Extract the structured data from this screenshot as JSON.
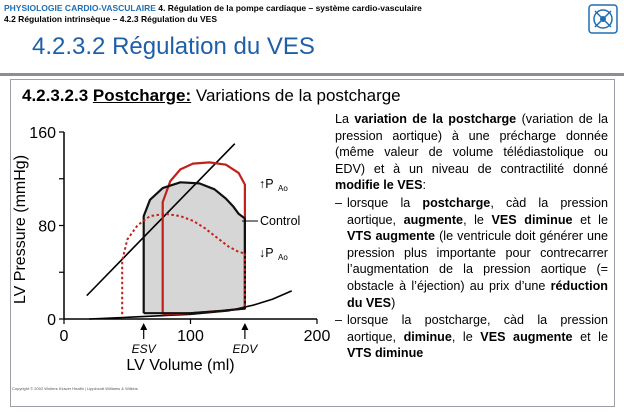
{
  "header": {
    "course_main": "PHYSIOLOGIE CARDIO-VASCULAIRE",
    "course_rest": " 4. Régulation de la pompe cardiaque – système cardio-vasculaire",
    "subsection": "4.2 Régulation intrinsèque – 4.2.3 Régulation du VES",
    "title": "4.2.3.2 Régulation du VES",
    "logo_color": "#1f6fb2",
    "title_color": "#1f5fa8"
  },
  "section": {
    "number": "4.2.3.2.3",
    "keyword": "Postcharge:",
    "rest": " Variations de la postcharge"
  },
  "chart_data": {
    "type": "line",
    "ylabel": "LV Pressure (mmHg)",
    "xlabel": "LV Volume (ml)",
    "xlim": [
      0,
      200
    ],
    "ylim": [
      0,
      160
    ],
    "x_ticks": [
      "0",
      "100",
      "200"
    ],
    "y_ticks": [
      "0",
      "40",
      "80",
      "120",
      "160"
    ],
    "y_tick_labels": [
      "0",
      "80",
      "160"
    ],
    "esv_label": "ESV",
    "edv_label": "EDV",
    "series": [
      {
        "name": "↑PAo",
        "color": "#c0221b",
        "style": "solid",
        "loop": [
          [
            78,
            4
          ],
          [
            78,
            100
          ],
          [
            84,
            118
          ],
          [
            92,
            128
          ],
          [
            102,
            133
          ],
          [
            115,
            134
          ],
          [
            128,
            132
          ],
          [
            138,
            125
          ],
          [
            143,
            115
          ],
          [
            143,
            9
          ],
          [
            125,
            7
          ],
          [
            100,
            5
          ],
          [
            85,
            4
          ],
          [
            78,
            4
          ]
        ]
      },
      {
        "name": "Control",
        "color": "#111111",
        "style": "solid",
        "loop": [
          [
            63,
            5
          ],
          [
            63,
            88
          ],
          [
            68,
            102
          ],
          [
            78,
            112
          ],
          [
            92,
            117
          ],
          [
            107,
            116
          ],
          [
            119,
            111
          ],
          [
            128,
            103
          ],
          [
            134,
            96
          ],
          [
            138,
            90
          ],
          [
            143,
            86
          ],
          [
            143,
            9
          ],
          [
            125,
            7
          ],
          [
            100,
            5
          ],
          [
            75,
            5
          ],
          [
            63,
            5
          ]
        ]
      },
      {
        "name": "↓PAo",
        "color": "#c0221b",
        "style": "dotted",
        "loop": [
          [
            46,
            4
          ],
          [
            46,
            50
          ],
          [
            50,
            68
          ],
          [
            58,
            80
          ],
          [
            68,
            88
          ],
          [
            80,
            90
          ],
          [
            92,
            88
          ],
          [
            102,
            84
          ],
          [
            111,
            78
          ],
          [
            118,
            72
          ],
          [
            124,
            67
          ],
          [
            130,
            62
          ],
          [
            137,
            58
          ],
          [
            143,
            56
          ]
        ]
      }
    ],
    "esps_line": [
      [
        18,
        20
      ],
      [
        135,
        150
      ]
    ],
    "edpvr_curve": [
      [
        20,
        0
      ],
      [
        60,
        2
      ],
      [
        100,
        4
      ],
      [
        130,
        7
      ],
      [
        150,
        12
      ],
      [
        165,
        17
      ],
      [
        180,
        24
      ]
    ],
    "labels": [
      "↑P",
      "Ao",
      "Control",
      "↓P",
      "Ao"
    ]
  },
  "text": {
    "p1_a": "La ",
    "p1_b": "variation de la postcharge",
    "p1_c": " (variation de la pression aortique) à une précharge donnée (même valeur de volume télédiastolique ou EDV) et à un niveau de contractilité donné ",
    "p1_d": "modifie le VES",
    "p1_e": ":",
    "dash": "–",
    "b1_a": "lorsque la ",
    "b1_b": "postcharge",
    "b1_c": ", càd la pression aortique, ",
    "b1_d": "augmente",
    "b1_e": ", le ",
    "b1_f": "VES diminue",
    "b1_g": " et le ",
    "b1_h": "VTS augmente",
    "b1_i": " (le ventricule doit générer une pression plus importante pour contrecarrer l’augmentation de la pression aortique (= obstacle à l’éjection) au prix d’une ",
    "b1_j": "réduction du VES",
    "b1_k": ")",
    "b2_a": "lorsque la postcharge, càd la pression aortique, ",
    "b2_b": "diminue",
    "b2_c": ", le ",
    "b2_d": "VES augmente",
    "b2_e": " et le ",
    "b2_f": "VTS diminue"
  },
  "footer": {
    "copyright": "Copyright © 2002 Wolters Kluwer Health | Lippincott Williams & Wilkins"
  }
}
